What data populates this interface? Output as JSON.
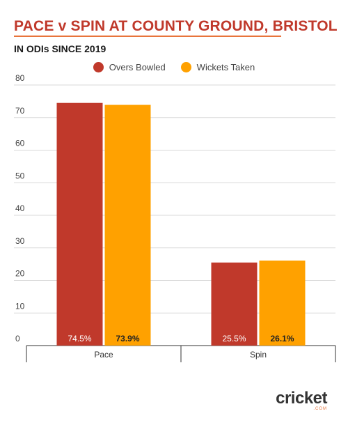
{
  "title": "PACE v SPIN AT COUNTY GROUND, BRISTOL",
  "subtitle": "IN ODIs SINCE 2019",
  "logo": {
    "wordmark": "cricket",
    "sub": ".COM"
  },
  "colors": {
    "overs": "#c0392b",
    "wickets": "#ffa100",
    "title": "#c0392b",
    "underline": "#e8743b"
  },
  "chart_data": {
    "type": "bar",
    "categories": [
      "Pace",
      "Spin"
    ],
    "series": [
      {
        "name": "Overs Bowled",
        "values": [
          74.5,
          25.5
        ],
        "labels": [
          "74.5%",
          "25.5%"
        ],
        "color": "#c0392b"
      },
      {
        "name": "Wickets Taken",
        "values": [
          73.9,
          26.1
        ],
        "labels": [
          "73.9%",
          "26.1%"
        ],
        "color": "#ffa100"
      }
    ],
    "yticks": [
      0,
      10,
      20,
      30,
      40,
      50,
      60,
      70,
      80
    ],
    "ylim": [
      0,
      80
    ],
    "grid": true,
    "legend": "top-center"
  }
}
